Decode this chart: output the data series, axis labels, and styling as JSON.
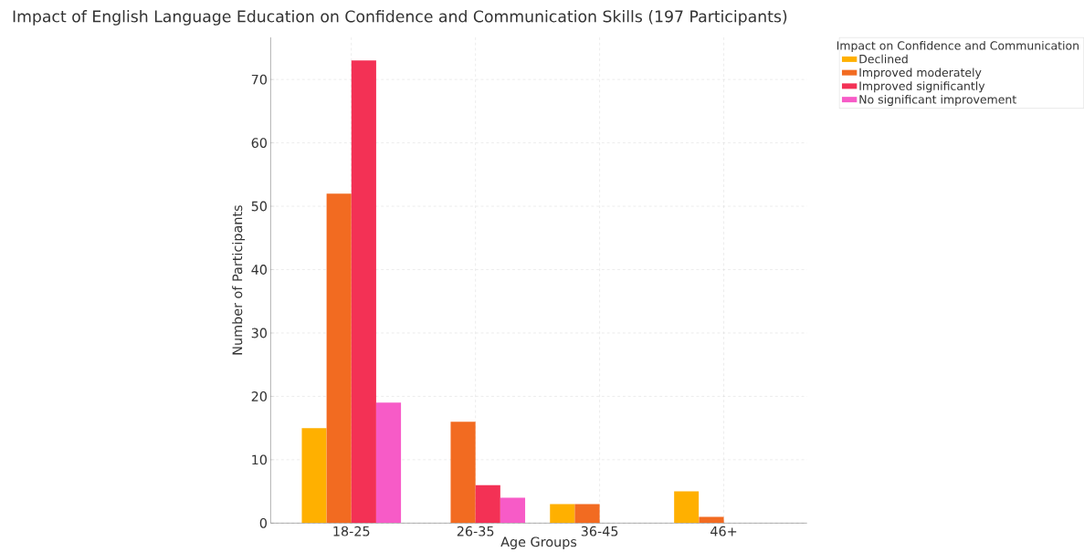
{
  "chart_data": {
    "type": "bar",
    "title": "Impact of English Language Education on Confidence and Communication Skills (197 Participants)",
    "xlabel": "Age Groups",
    "ylabel": "Number of Participants",
    "legend_title": "Impact on Confidence and Communication",
    "categories": [
      "18-25",
      "26-35",
      "36-45",
      "46+"
    ],
    "series": [
      {
        "name": "Declined",
        "color": "#ffb000",
        "values": [
          15,
          0,
          3,
          5
        ]
      },
      {
        "name": "Improved moderately",
        "color": "#f26b21",
        "values": [
          52,
          16,
          3,
          1
        ]
      },
      {
        "name": "Improved significantly",
        "color": "#f33155",
        "values": [
          73,
          6,
          0,
          0
        ]
      },
      {
        "name": "No significant improvement",
        "color": "#f75bc7",
        "values": [
          19,
          4,
          0,
          0
        ]
      }
    ],
    "ylim": [
      0,
      76.65
    ],
    "yticks": [
      0,
      10,
      20,
      30,
      40,
      50,
      60,
      70
    ],
    "grid": true,
    "legend": "top right"
  }
}
